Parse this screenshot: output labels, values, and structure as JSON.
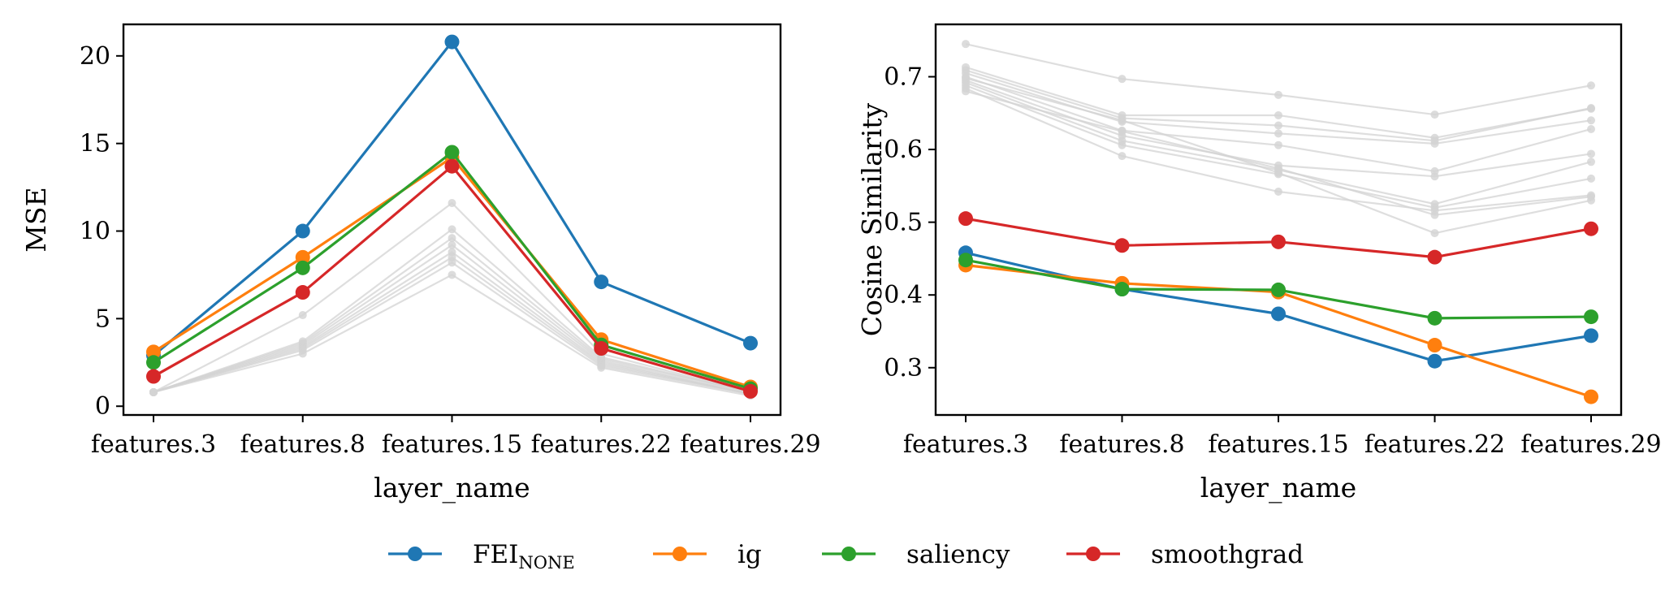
{
  "figure": {
    "legend": {
      "placement": "bottom-center",
      "entries": [
        {
          "name": "FEI",
          "subscript": "NONE",
          "color": "#1f77b4"
        },
        {
          "name": "ig",
          "subscript": "",
          "color": "#ff7f0e"
        },
        {
          "name": "saliency",
          "subscript": "",
          "color": "#2ca02c"
        },
        {
          "name": "smoothgrad",
          "subscript": "",
          "color": "#d62728"
        }
      ]
    }
  },
  "chart_data": [
    {
      "type": "line",
      "xlabel": "layer_name",
      "ylabel": "MSE",
      "categories": [
        "features.3",
        "features.8",
        "features.15",
        "features.22",
        "features.29"
      ],
      "ylim": [
        -0.5,
        21.8
      ],
      "yticks": [
        0,
        5,
        10,
        15,
        20
      ],
      "ytick_labels": [
        "0",
        "5",
        "10",
        "15",
        "20"
      ],
      "grid": false,
      "background_color": "#d3d3d3",
      "background_series": [
        {
          "values": [
            0.8,
            5.2,
            11.6,
            3.0,
            0.8
          ]
        },
        {
          "values": [
            0.8,
            3.7,
            10.1,
            2.8,
            0.8
          ]
        },
        {
          "values": [
            0.8,
            3.6,
            9.6,
            2.7,
            0.8
          ]
        },
        {
          "values": [
            0.8,
            3.5,
            9.2,
            2.6,
            0.7
          ]
        },
        {
          "values": [
            0.8,
            3.4,
            8.8,
            2.5,
            0.7
          ]
        },
        {
          "values": [
            0.8,
            3.3,
            8.5,
            2.4,
            0.7
          ]
        },
        {
          "values": [
            0.8,
            3.2,
            8.2,
            2.3,
            0.7
          ]
        },
        {
          "values": [
            0.8,
            3.0,
            7.5,
            2.2,
            0.6
          ]
        }
      ],
      "series": [
        {
          "name": "FEI_NONE",
          "color": "#1f77b4",
          "values": [
            2.9,
            10.0,
            20.8,
            7.1,
            3.6
          ]
        },
        {
          "name": "ig",
          "color": "#ff7f0e",
          "values": [
            3.1,
            8.5,
            14.2,
            3.8,
            1.1
          ]
        },
        {
          "name": "saliency",
          "color": "#2ca02c",
          "values": [
            2.5,
            7.9,
            14.5,
            3.5,
            1.0
          ]
        },
        {
          "name": "smoothgrad",
          "color": "#d62728",
          "values": [
            1.7,
            6.5,
            13.7,
            3.3,
            0.85
          ]
        }
      ]
    },
    {
      "type": "line",
      "xlabel": "layer_name",
      "ylabel": "Cosine Similarity",
      "categories": [
        "features.3",
        "features.8",
        "features.15",
        "features.22",
        "features.29"
      ],
      "ylim": [
        0.235,
        0.772
      ],
      "yticks": [
        0.3,
        0.4,
        0.5,
        0.6,
        0.7
      ],
      "ytick_labels": [
        "0.3",
        "0.4",
        "0.5",
        "0.6",
        "0.7"
      ],
      "grid": false,
      "background_color": "#d3d3d3",
      "background_series": [
        {
          "values": [
            0.745,
            0.697,
            0.675,
            0.648,
            0.688
          ]
        },
        {
          "values": [
            0.713,
            0.647,
            0.647,
            0.616,
            0.656
          ]
        },
        {
          "values": [
            0.709,
            0.643,
            0.633,
            0.612,
            0.657
          ]
        },
        {
          "values": [
            0.705,
            0.638,
            0.622,
            0.608,
            0.64
          ]
        },
        {
          "values": [
            0.7,
            0.626,
            0.606,
            0.57,
            0.628
          ]
        },
        {
          "values": [
            0.695,
            0.619,
            0.578,
            0.563,
            0.594
          ]
        },
        {
          "values": [
            0.692,
            0.612,
            0.572,
            0.525,
            0.583
          ]
        },
        {
          "values": [
            0.688,
            0.606,
            0.566,
            0.52,
            0.56
          ]
        },
        {
          "values": [
            0.684,
            0.591,
            0.542,
            0.516,
            0.537
          ]
        },
        {
          "values": [
            0.68,
            0.625,
            0.574,
            0.51,
            0.535
          ]
        },
        {
          "values": [
            0.698,
            0.64,
            0.568,
            0.485,
            0.53
          ]
        }
      ],
      "series": [
        {
          "name": "FEI_NONE",
          "color": "#1f77b4",
          "values": [
            0.458,
            0.408,
            0.374,
            0.309,
            0.344
          ]
        },
        {
          "name": "ig",
          "color": "#ff7f0e",
          "values": [
            0.441,
            0.416,
            0.404,
            0.331,
            0.26
          ]
        },
        {
          "name": "saliency",
          "color": "#2ca02c",
          "values": [
            0.448,
            0.408,
            0.407,
            0.368,
            0.37
          ]
        },
        {
          "name": "smoothgrad",
          "color": "#d62728",
          "values": [
            0.505,
            0.468,
            0.473,
            0.452,
            0.491
          ]
        }
      ]
    }
  ]
}
